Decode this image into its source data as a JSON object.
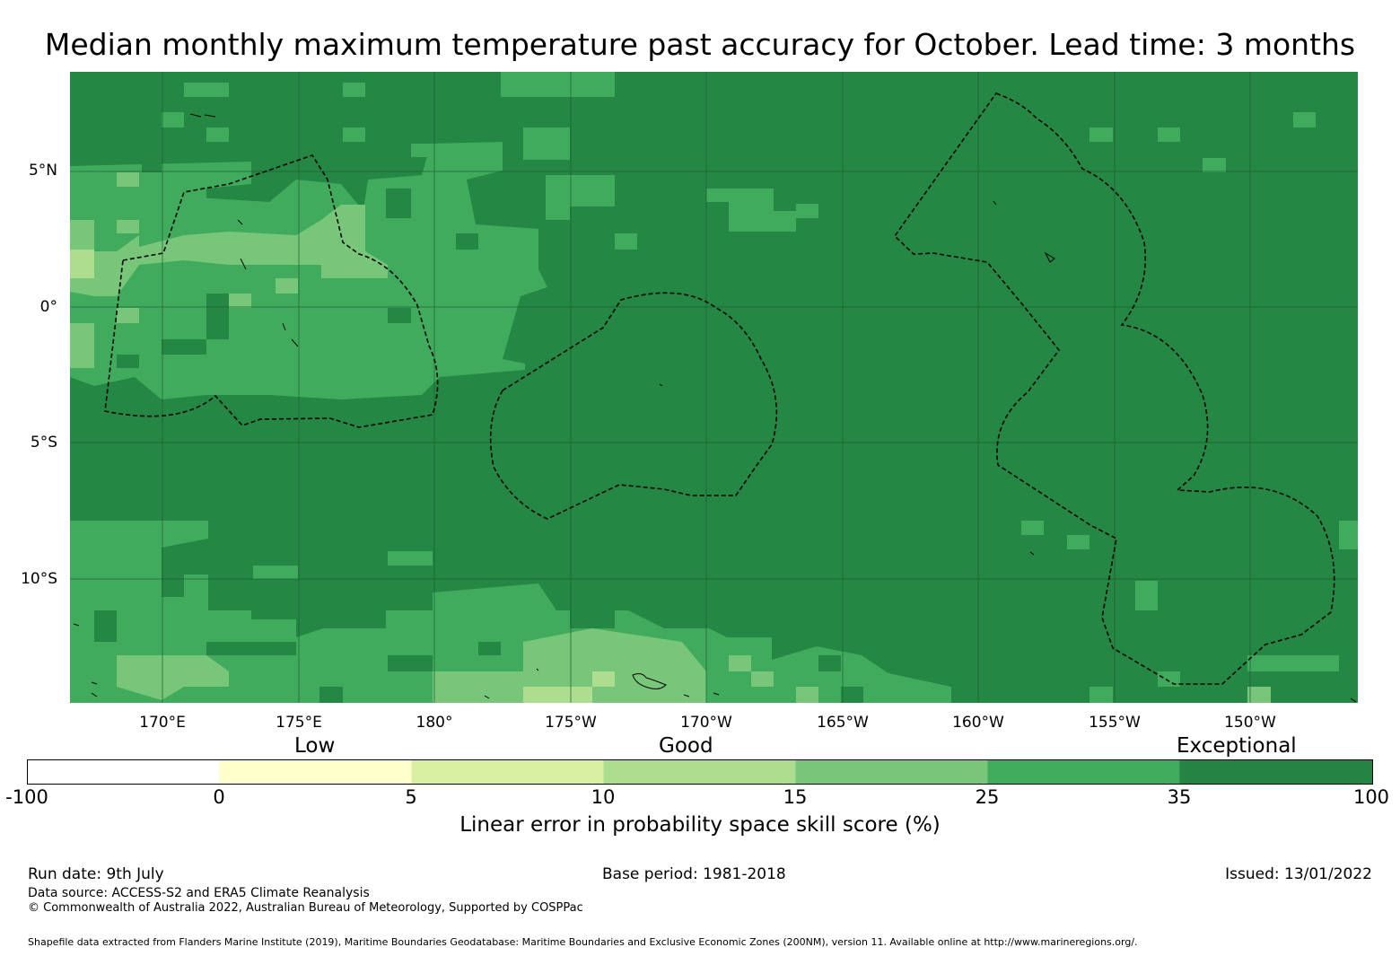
{
  "title": "Median monthly maximum temperature past accuracy for October. Lead time: 3 months",
  "map": {
    "lat_labels": [
      "5°N",
      "0°",
      "5°S",
      "10°S"
    ],
    "lon_labels": [
      "170°E",
      "175°E",
      "180°",
      "175°W",
      "170°W",
      "165°W",
      "160°W",
      "155°W",
      "150°W"
    ],
    "lon_range": [
      166.6,
      213.9
    ],
    "lat_range": [
      -14.7,
      8.5
    ],
    "background_skill_category": "35 to 100",
    "ocean_color": "#248743",
    "eez_boundary_style": "dashed black line"
  },
  "colorbar": {
    "categories": [
      "Low",
      "Good",
      "Exceptional"
    ],
    "ticks": [
      "-100",
      "0",
      "5",
      "10",
      "15",
      "25",
      "35",
      "100"
    ],
    "colors": [
      "#ffffff",
      "#ffffcc",
      "#d9f0a3",
      "#addd8e",
      "#78c679",
      "#41ab5d",
      "#238443"
    ],
    "label": "Linear error in probability space skill score (%)"
  },
  "footer": {
    "run_date": "Run date: 9th July",
    "base_period": "Base period: 1981-2018",
    "issued": "Issued: 13/01/2022",
    "data_source": "Data source: ACCESS-S2 and ERA5 Climate Reanalysis",
    "copyright": "© Commonwealth of Australia 2022, Australian Bureau of Meteorology, Supported by COSPPac",
    "shapefile": "Shapefile data extracted from Flanders Marine Institute (2019), Maritime Boundaries Geodatabase: Maritime Boundaries and Exclusive Economic Zones (200NM), version 11. Available online at http://www.marineregions.org/."
  }
}
